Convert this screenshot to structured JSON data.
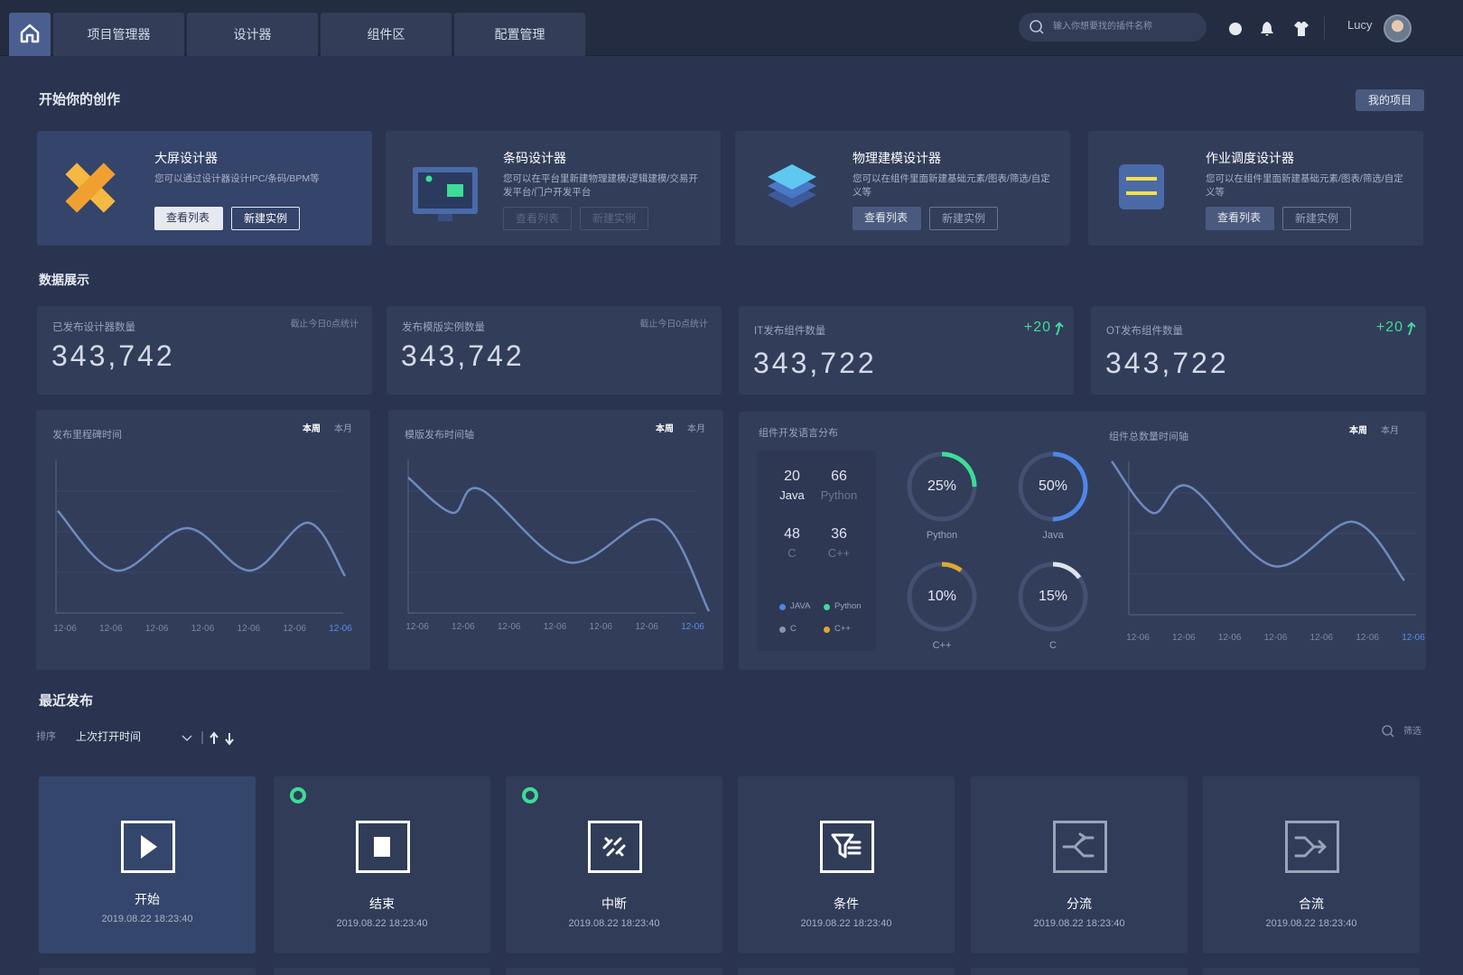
{
  "nav": {
    "tabs": [
      "项目管理器",
      "设计器",
      "组件区",
      "配置管理"
    ],
    "search_placeholder": "输入你想要找的插件名称",
    "user": "Lucy"
  },
  "create": {
    "title": "开始你的创作",
    "my_projects": "我的项目",
    "cards": [
      {
        "title": "大屏设计器",
        "desc": "您可以通过设计器设计IPC/条码/BPM等",
        "view": "查看列表",
        "new": "新建实例"
      },
      {
        "title": "条码设计器",
        "desc": "您可以在平台里新建物理建模/逻辑建模/交易开发平台/门户开发平台",
        "view": "查看列表",
        "new": "新建实例"
      },
      {
        "title": "物理建模设计器",
        "desc": "您可以在组件里面新建基础元素/图表/筛选/自定义等",
        "view": "查看列表",
        "new": "新建实例"
      },
      {
        "title": "作业调度设计器",
        "desc": "您可以在组件里面新建基础元素/图表/筛选/自定义等",
        "view": "查看列表",
        "new": "新建实例"
      }
    ]
  },
  "data": {
    "title": "数据展示",
    "stats": [
      {
        "label": "已发布设计器数量",
        "note": "截止今日0点统计",
        "value": "343,742"
      },
      {
        "label": "发布模版实例数量",
        "note": "截止今日0点统计",
        "value": "343,742"
      },
      {
        "label": "IT发布组件数量",
        "delta": "+20",
        "value": "343,722"
      },
      {
        "label": "OT发布组件数量",
        "delta": "+20",
        "value": "343,722"
      }
    ],
    "timelines": [
      {
        "title": "发布里程碑时间",
        "tabs": [
          "本周",
          "本月"
        ],
        "x": [
          "12-06",
          "12-06",
          "12-06",
          "12-06",
          "12-06",
          "12-06",
          "12-06"
        ]
      },
      {
        "title": "模版发布时间轴",
        "tabs": [
          "本周",
          "本月"
        ],
        "x": [
          "12-06",
          "12-06",
          "12-06",
          "12-06",
          "12-06",
          "12-06",
          "12-06"
        ]
      },
      {
        "title": "组件总数量时间轴",
        "tabs": [
          "本周",
          "本月"
        ],
        "x": [
          "12-06",
          "12-06",
          "12-06",
          "12-06",
          "12-06",
          "12-06",
          "12-06"
        ]
      }
    ],
    "language": {
      "title": "组件开发语言分布",
      "counts": [
        {
          "value": 20,
          "name": "Java"
        },
        {
          "value": 66,
          "name": "Python"
        },
        {
          "value": 48,
          "name": "C"
        },
        {
          "value": 36,
          "name": "C++"
        }
      ],
      "legend": [
        {
          "name": "JAVA",
          "color": "#4f86e8"
        },
        {
          "name": "Python",
          "color": "#3ddc97"
        },
        {
          "name": "C",
          "color": "#8a93aa"
        },
        {
          "name": "C++",
          "color": "#e0a82e"
        }
      ],
      "rings": [
        {
          "name": "Python",
          "value": 25,
          "value_label": "25%",
          "color": "#3ddc97"
        },
        {
          "name": "Java",
          "value": 50,
          "value_label": "50%",
          "color": "#4f86e8"
        },
        {
          "name": "C++",
          "value": 10,
          "value_label": "10%",
          "color": "#e0a82e"
        },
        {
          "name": "C",
          "value": 15,
          "value_label": "15%",
          "color": "#dfe3ec"
        }
      ]
    }
  },
  "recent": {
    "title": "最近发布",
    "sort_label": "排序",
    "sort_value": "上次打开时间",
    "filter": "筛选",
    "items": [
      {
        "name": "开始",
        "time": "2019.08.22 18:23:40"
      },
      {
        "name": "结束",
        "time": "2019.08.22 18:23:40"
      },
      {
        "name": "中断",
        "time": "2019.08.22 18:23:40"
      },
      {
        "name": "条件",
        "time": "2019.08.22 18:23:40"
      },
      {
        "name": "分流",
        "time": "2019.08.22 18:23:40"
      },
      {
        "name": "合流",
        "time": "2019.08.22 18:23:40"
      }
    ]
  }
}
